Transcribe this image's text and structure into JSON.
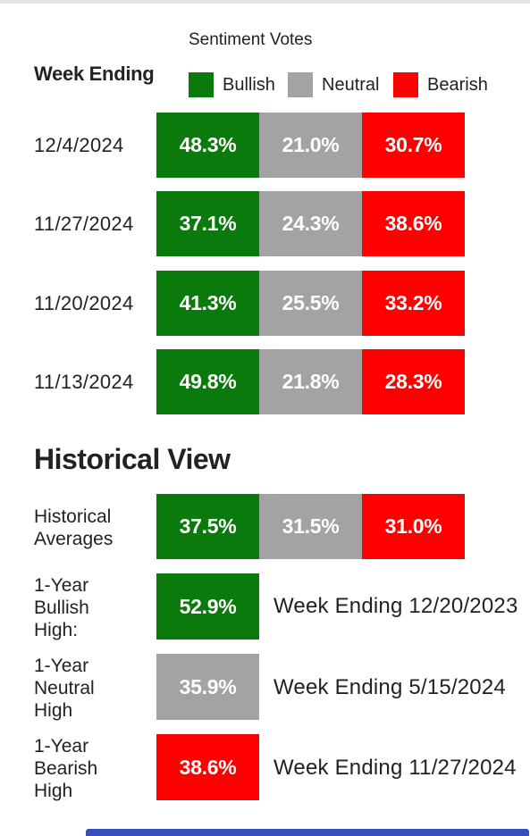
{
  "colors": {
    "bullish": "#0a7a0c",
    "neutral": "#a3a3a3",
    "bearish": "#ff0000",
    "bottom_bar": "#3a4fbf"
  },
  "header": {
    "subtitle": "Sentiment Votes",
    "week_ending_label": "Week Ending"
  },
  "legend": {
    "bullish": "Bullish",
    "neutral": "Neutral",
    "bearish": "Bearish"
  },
  "weekly": [
    {
      "date": "12/4/2024",
      "bullish": "48.3%",
      "neutral": "21.0%",
      "bearish": "30.7%"
    },
    {
      "date": "11/27/2024",
      "bullish": "37.1%",
      "neutral": "24.3%",
      "bearish": "38.6%"
    },
    {
      "date": "11/20/2024",
      "bullish": "41.3%",
      "neutral": "25.5%",
      "bearish": "33.2%"
    },
    {
      "date": "11/13/2024",
      "bullish": "49.8%",
      "neutral": "21.8%",
      "bearish": "28.3%"
    }
  ],
  "historical": {
    "title": "Historical View",
    "averages": {
      "label_line1": "Historical",
      "label_line2": "Averages",
      "bullish": "37.5%",
      "neutral": "31.5%",
      "bearish": "31.0%"
    },
    "bullish_high": {
      "label_line1": "1-Year",
      "label_line2": "Bullish",
      "label_line3": "High:",
      "value": "52.9%",
      "week": "Week Ending 12/20/2023"
    },
    "neutral_high": {
      "label_line1": "1-Year",
      "label_line2": "Neutral",
      "label_line3": "High",
      "value": "35.9%",
      "week": "Week Ending 5/15/2024"
    },
    "bearish_high": {
      "label_line1": "1-Year",
      "label_line2": "Bearish",
      "label_line3": "High",
      "value": "38.6%",
      "week": "Week Ending 11/27/2024"
    }
  }
}
